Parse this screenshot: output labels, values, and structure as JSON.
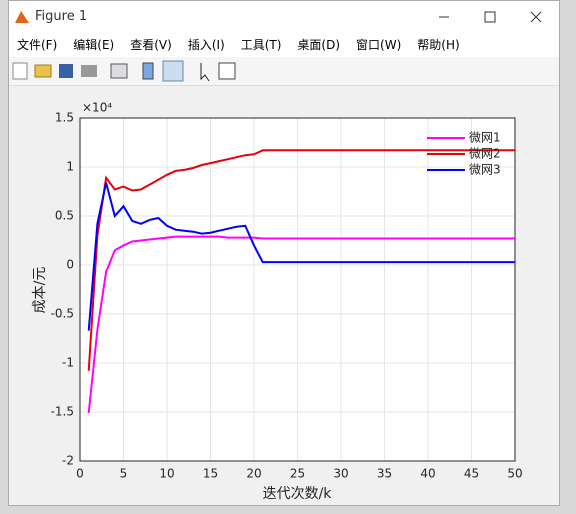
{
  "window": {
    "title": "Figure 1",
    "menu": [
      "文件(F)",
      "编辑(E)",
      "查看(V)",
      "插入(I)",
      "工具(T)",
      "桌面(D)",
      "窗口(W)",
      "帮助(H)"
    ]
  },
  "chart_data": {
    "type": "line",
    "y_multiplier": "×10⁴",
    "xlabel": "迭代次数/k",
    "ylabel": "成本/元",
    "x": [
      1,
      2,
      3,
      4,
      5,
      6,
      7,
      8,
      9,
      10,
      11,
      12,
      13,
      14,
      15,
      16,
      17,
      18,
      19,
      20,
      21,
      22,
      23,
      24,
      25,
      26,
      27,
      28,
      29,
      30,
      31,
      32,
      33,
      34,
      35,
      36,
      37,
      38,
      39,
      40,
      41,
      42,
      43,
      44,
      45,
      46,
      47,
      48,
      49,
      50
    ],
    "series": [
      {
        "name": "微网1",
        "color": "#ff00ff",
        "values": [
          -1.51,
          -0.66,
          -0.07,
          0.15,
          0.2,
          0.24,
          0.25,
          0.26,
          0.27,
          0.28,
          0.29,
          0.29,
          0.29,
          0.29,
          0.29,
          0.29,
          0.28,
          0.28,
          0.28,
          0.28,
          0.27,
          0.27,
          0.27,
          0.27,
          0.27,
          0.27,
          0.27,
          0.27,
          0.27,
          0.27,
          0.27,
          0.27,
          0.27,
          0.27,
          0.27,
          0.27,
          0.27,
          0.27,
          0.27,
          0.27,
          0.27,
          0.27,
          0.27,
          0.27,
          0.27,
          0.27,
          0.27,
          0.27,
          0.27,
          0.27
        ]
      },
      {
        "name": "微网2",
        "color": "#e8000b",
        "values": [
          -1.08,
          0.3,
          0.89,
          0.77,
          0.8,
          0.76,
          0.77,
          0.82,
          0.87,
          0.92,
          0.96,
          0.97,
          0.99,
          1.02,
          1.04,
          1.06,
          1.08,
          1.1,
          1.12,
          1.13,
          1.17,
          1.17,
          1.17,
          1.17,
          1.17,
          1.17,
          1.17,
          1.17,
          1.17,
          1.17,
          1.17,
          1.17,
          1.17,
          1.17,
          1.17,
          1.17,
          1.17,
          1.17,
          1.17,
          1.17,
          1.17,
          1.17,
          1.17,
          1.17,
          1.17,
          1.17,
          1.17,
          1.17,
          1.17,
          1.17
        ]
      },
      {
        "name": "微网3",
        "color": "#0000ff",
        "values": [
          -0.67,
          0.42,
          0.84,
          0.5,
          0.6,
          0.45,
          0.42,
          0.46,
          0.48,
          0.4,
          0.36,
          0.35,
          0.34,
          0.32,
          0.33,
          0.35,
          0.37,
          0.39,
          0.4,
          0.2,
          0.03,
          0.03,
          0.03,
          0.03,
          0.03,
          0.03,
          0.03,
          0.03,
          0.03,
          0.03,
          0.03,
          0.03,
          0.03,
          0.03,
          0.03,
          0.03,
          0.03,
          0.03,
          0.03,
          0.03,
          0.03,
          0.03,
          0.03,
          0.03,
          0.03,
          0.03,
          0.03,
          0.03,
          0.03,
          0.03
        ]
      }
    ],
    "xlim": [
      0,
      50
    ],
    "xticks": [
      0,
      5,
      10,
      15,
      20,
      25,
      30,
      35,
      40,
      45,
      50
    ],
    "ylim": [
      -2,
      1.5
    ],
    "yticks": [
      -2,
      -1.5,
      -1,
      -0.5,
      0,
      0.5,
      1,
      1.5
    ],
    "grid": true,
    "legend": "top-right"
  }
}
